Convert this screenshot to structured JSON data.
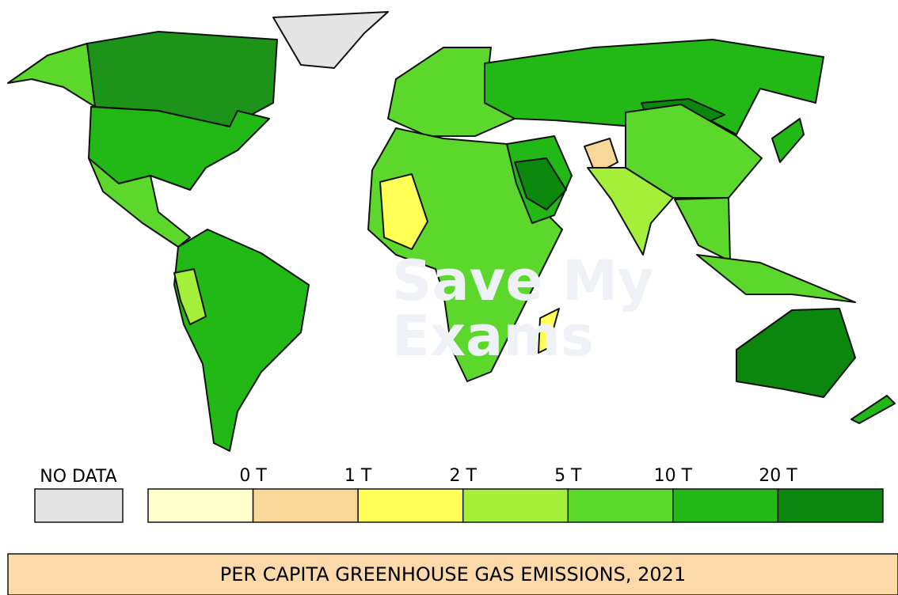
{
  "legend": {
    "no_data_label": "NO DATA",
    "no_data_color": "#e4e4e4",
    "ticks": [
      "0 T",
      "1 T",
      "2 T",
      "5 T",
      "10 T",
      "20 T"
    ],
    "colors": [
      "#ffffcc",
      "#f8d898",
      "#ffff55",
      "#a4ef3a",
      "#5cd82c",
      "#22b816",
      "#0c870e"
    ]
  },
  "watermark": [
    "Save My",
    "Exams"
  ],
  "title": "PER CAPITA GREENHOUSE GAS EMISSIONS, 2021"
}
